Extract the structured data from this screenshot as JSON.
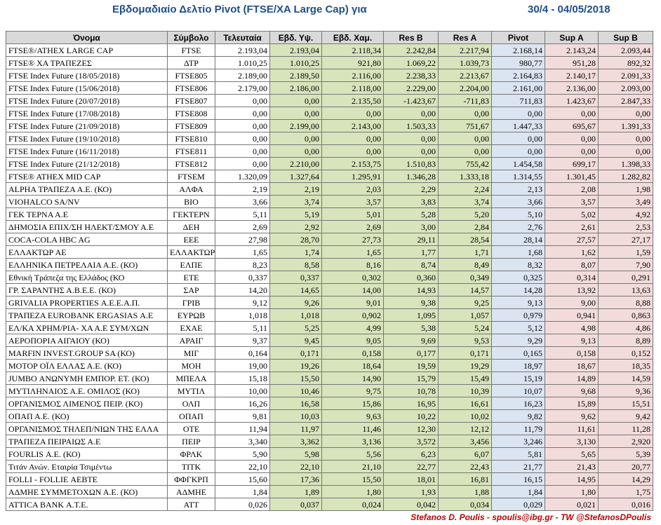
{
  "header": {
    "title": "Εβδομαδιαίο Δελτίο Pivot (FTSE/XA Large Cap) για",
    "period": "30/4 - 04/05/2018"
  },
  "table": {
    "columns": [
      "Όνομα",
      "Σύμβολο",
      "Τελευταία",
      "Εβδ. Υψ.",
      "Εβδ. Χαμ.",
      "Res B",
      "Res A",
      "Pivot",
      "Sup A",
      "Sup B"
    ],
    "rows": [
      [
        "FTSE®/ATHEX LARGE CAP",
        "FTSE",
        "2.193,04",
        "2.193,04",
        "2.118,34",
        "2.242,84",
        "2.217,94",
        "2.168,14",
        "2.143,24",
        "2.093,44"
      ],
      [
        "FTSE® ΧΑ ΤΡΑΠΕΖΕΣ",
        "ΔΤΡ",
        "1.010,25",
        "1.010,25",
        "921,80",
        "1.069,22",
        "1.039,73",
        "980,77",
        "951,28",
        "892,32"
      ],
      [
        "FTSE Index Future (18/05/2018)",
        "FTSE805",
        "2.189,00",
        "2.189,50",
        "2.116,00",
        "2.238,33",
        "2.213,67",
        "2.164,83",
        "2.140,17",
        "2.091,33"
      ],
      [
        "FTSE Index Future (15/06/2018)",
        "FTSE806",
        "2.179,00",
        "2.186,00",
        "2.118,00",
        "2.229,00",
        "2.204,00",
        "2.161,00",
        "2.136,00",
        "2.093,00"
      ],
      [
        "FTSE Index Future (20/07/2018)",
        "FTSE807",
        "0,00",
        "0,00",
        "2.135,50",
        "-1.423,67",
        "-711,83",
        "711,83",
        "1.423,67",
        "2.847,33"
      ],
      [
        "FTSE Index Future (17/08/2018)",
        "FTSE808",
        "0,00",
        "0,00",
        "0,00",
        "0,00",
        "0,00",
        "0,00",
        "0,00",
        "0,00"
      ],
      [
        "FTSE Index Future (21/09/2018)",
        "FTSE809",
        "0,00",
        "2.199,00",
        "2.143,00",
        "1.503,33",
        "751,67",
        "1.447,33",
        "695,67",
        "1.391,33"
      ],
      [
        "FTSE Index Future (19/10/2018)",
        "FTSE810",
        "0,00",
        "0,00",
        "0,00",
        "0,00",
        "0,00",
        "0,00",
        "0,00",
        "0,00"
      ],
      [
        "FTSE Index Future (16/11/2018)",
        "FTSE811",
        "0,00",
        "0,00",
        "0,00",
        "0,00",
        "0,00",
        "0,00",
        "0,00",
        "0,00"
      ],
      [
        "FTSE Index Future (21/12/2018)",
        "FTSE812",
        "0,00",
        "2.210,00",
        "2.153,75",
        "1.510,83",
        "755,42",
        "1.454,58",
        "699,17",
        "1.398,33"
      ],
      [
        "FTSE® ATHEX MID CAP",
        "FTSEM",
        "1.320,09",
        "1.327,64",
        "1.295,91",
        "1.346,28",
        "1.333,18",
        "1.314,55",
        "1.301,45",
        "1.282,82"
      ],
      [
        "ALPHA ΤΡΑΠΕΖΑ Α.Ε. (ΚΟ)",
        "ΑΛΦΑ",
        "2,19",
        "2,19",
        "2,03",
        "2,29",
        "2,24",
        "2,13",
        "2,08",
        "1,98"
      ],
      [
        "VIOHALCO SA/NV",
        "ΒΙΟ",
        "3,66",
        "3,74",
        "3,57",
        "3,83",
        "3,74",
        "3,66",
        "3,57",
        "3,49"
      ],
      [
        "ΓΕΚ ΤΕΡΝΑ Α.Ε",
        "ΓΕΚΤΕΡΝ",
        "5,11",
        "5,19",
        "5,01",
        "5,28",
        "5,20",
        "5,10",
        "5,02",
        "4,92"
      ],
      [
        "ΔΗΜΟΣΙΑ ΕΠΙΧ/ΣΗ ΗΛΕΚΤ/ΣΜΟΥ Α.Ε",
        "ΔΕΗ",
        "2,69",
        "2,92",
        "2,69",
        "3,00",
        "2,84",
        "2,76",
        "2,61",
        "2,53"
      ],
      [
        "COCA-COLA HBC AG",
        "ΕΕΕ",
        "27,98",
        "28,70",
        "27,73",
        "29,11",
        "28,54",
        "28,14",
        "27,57",
        "27,17"
      ],
      [
        "ΕΛΛΑΚΤΩΡ ΑΕ",
        "ΕΛΛΑΚΤΩΡ",
        "1,65",
        "1,74",
        "1,65",
        "1,77",
        "1,71",
        "1,68",
        "1,62",
        "1,59"
      ],
      [
        "ΕΛΛΗΝΙΚΑ ΠΕΤΡΕΛΑΙΑ Α.Ε. (ΚΟ)",
        "ΕΛΠΕ",
        "8,23",
        "8,58",
        "8,16",
        "8,74",
        "8,49",
        "8,32",
        "8,07",
        "7,90"
      ],
      [
        "Εθνική Τράπεζα της Ελλάδος (ΚΟ",
        "ΕΤΕ",
        "0,337",
        "0,337",
        "0,302",
        "0,360",
        "0,349",
        "0,325",
        "0,314",
        "0,291"
      ],
      [
        "ΓΡ. ΣΑΡΑΝΤΗΣ Α.Β.Ε.Ε. (ΚΟ)",
        "ΣΑΡ",
        "14,20",
        "14,65",
        "14,00",
        "14,93",
        "14,57",
        "14,28",
        "13,92",
        "13,63"
      ],
      [
        "GRIVALIA PROPERTIES Α.Ε.Ε.Α.Π.",
        "ΓΡΙΒ",
        "9,12",
        "9,26",
        "9,01",
        "9,38",
        "9,25",
        "9,13",
        "9,00",
        "8,88"
      ],
      [
        "ΤΡΑΠΕΖΑ EUROBANK ERGASIAS Α.Ε",
        "ΕΥΡΩΒ",
        "1,018",
        "1,018",
        "0,902",
        "1,095",
        "1,057",
        "0,979",
        "0,941",
        "0,863"
      ],
      [
        "ΕΛ/ΚΑ ΧΡΗΜ/ΡΙΑ- ΧΑ Α.Ε ΣΥΜ/ΧΩΝ",
        "ΕΧΑΕ",
        "5,11",
        "5,25",
        "4,99",
        "5,38",
        "5,24",
        "5,12",
        "4,98",
        "4,86"
      ],
      [
        "ΑΕΡΟΠΟΡΙΑ ΑΙΓΑΙΟΥ (ΚΟ)",
        "ΑΡΑΙΓ",
        "9,37",
        "9,45",
        "9,05",
        "9,69",
        "9,53",
        "9,29",
        "9,13",
        "8,89"
      ],
      [
        "MARFIN INVEST.GROUP SA (ΚΟ)",
        "ΜΙΓ",
        "0,164",
        "0,171",
        "0,158",
        "0,177",
        "0,171",
        "0,165",
        "0,158",
        "0,152"
      ],
      [
        "ΜΟΤΟΡ ΟΪΛ ΕΛΛΑΣ Α.Ε. (ΚΟ)",
        "ΜΟΗ",
        "19,00",
        "19,26",
        "18,64",
        "19,59",
        "19,29",
        "18,97",
        "18,67",
        "18,35"
      ],
      [
        "JUMBO ΑΝΩΝΥΜΗ ΕΜΠΟΡ. ΕΤ. (ΚΟ)",
        "ΜΠΕΛΑ",
        "15,18",
        "15,50",
        "14,90",
        "15,79",
        "15,49",
        "15,19",
        "14,89",
        "14,59"
      ],
      [
        "ΜΥΤΙΛΗΝΑΙΟΣ Α.Ε. ΟΜΙΛΟΣ (ΚΟ)",
        "ΜΥΤΙΛ",
        "10,00",
        "10,46",
        "9,75",
        "10,78",
        "10,39",
        "10,07",
        "9,68",
        "9,36"
      ],
      [
        "ΟΡΓΑΝΙΣΜΟΣ ΛΙΜΕΝΟΣ ΠΕΙΡ. (ΚΟ)",
        "ΟΛΠ",
        "16,26",
        "16,58",
        "15,86",
        "16,95",
        "16,61",
        "16,23",
        "15,89",
        "15,51"
      ],
      [
        "ΟΠΑΠ Α.Ε. (ΚΟ)",
        "ΟΠΑΠ",
        "9,81",
        "10,03",
        "9,63",
        "10,22",
        "10,02",
        "9,82",
        "9,62",
        "9,42"
      ],
      [
        "ΟΡΓΑΝΙΣΜΟΣ ΤΗΛΕΠ/ΝΙΩΝ ΤΗΣ ΕΛΛΑ",
        "ΟΤΕ",
        "11,94",
        "11,97",
        "11,46",
        "12,30",
        "12,12",
        "11,79",
        "11,61",
        "11,28"
      ],
      [
        "ΤΡΑΠΕΖΑ ΠΕΙΡΑΙΩΣ Α.Ε",
        "ΠΕΙΡ",
        "3,340",
        "3,362",
        "3,136",
        "3,572",
        "3,456",
        "3,246",
        "3,130",
        "2,920"
      ],
      [
        "FOURLIS Α.Ε. (ΚΟ)",
        "ΦΡΛΚ",
        "5,90",
        "5,98",
        "5,56",
        "6,23",
        "6,07",
        "5,81",
        "5,65",
        "5,39"
      ],
      [
        "Τιτάν Ανών. Εταιρία Τσιμέντω",
        "ΤΙΤΚ",
        "22,10",
        "22,10",
        "21,10",
        "22,77",
        "22,43",
        "21,77",
        "21,43",
        "20,77"
      ],
      [
        "FOLLI - FOLLIE ΑΕΒΤΕ",
        "ΦΦΓΚΡΠ",
        "15,60",
        "17,36",
        "15,50",
        "18,01",
        "16,81",
        "16,15",
        "14,95",
        "14,29"
      ],
      [
        "ΑΔΜΗΕ ΣΥΜΜΕΤΟΧΩΝ Α.Ε. (ΚΟ)",
        "ΑΔΜΗΕ",
        "1,84",
        "1,89",
        "1,80",
        "1,93",
        "1,88",
        "1,84",
        "1,80",
        "1,75"
      ],
      [
        "ATTICA BANK Α.Τ.Ε.",
        "ΑΤΤ",
        "0,026",
        "0,037",
        "0,024",
        "0,042",
        "0,034",
        "0,029",
        "0,021",
        "0,016"
      ]
    ]
  },
  "footer": {
    "credit": "Stefanos D. Poulis - spoulis@ibg.gr - TW @StefanosDPoulis"
  }
}
